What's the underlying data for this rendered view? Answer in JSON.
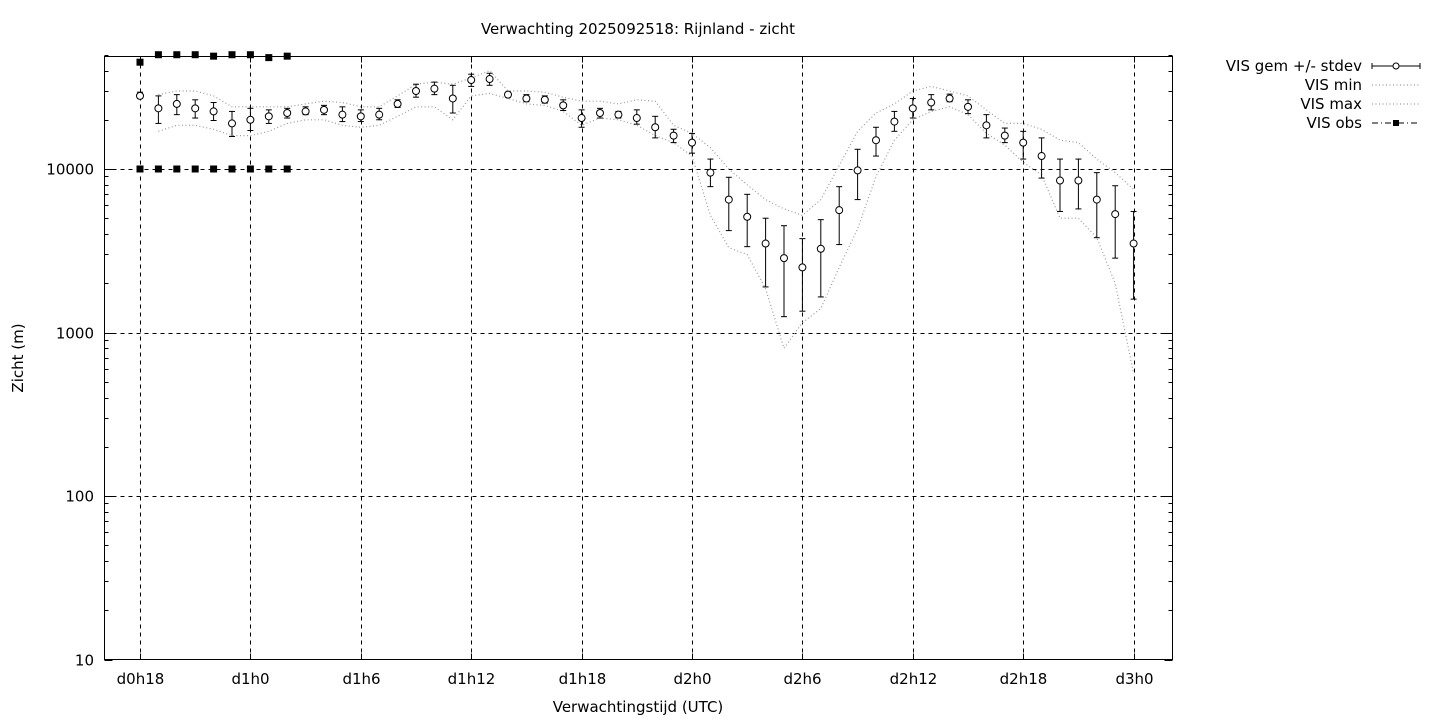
{
  "chart_data": {
    "type": "line",
    "title": "Verwachting 2025092518: Rijnland - zicht",
    "xlabel": "Verwachtingstijd (UTC)",
    "ylabel": "Zicht (m)",
    "y_scale": "log",
    "ylim": [
      10,
      50000
    ],
    "xlim": [
      "d0h18",
      "d3h0"
    ],
    "grid": true,
    "legend_position": "outside-right",
    "x_ticks": [
      "d0h18",
      "d1h0",
      "d1h6",
      "d1h12",
      "d1h18",
      "d2h0",
      "d2h6",
      "d2h12",
      "d2h18",
      "d3h0"
    ],
    "y_ticks": [
      10,
      100,
      1000,
      10000
    ],
    "lead_hours_per_step": 1,
    "x": [
      18,
      19,
      20,
      21,
      22,
      23,
      24,
      25,
      26,
      27,
      28,
      29,
      30,
      31,
      32,
      33,
      34,
      35,
      36,
      37,
      38,
      39,
      40,
      41,
      42,
      43,
      44,
      45,
      46,
      47,
      48,
      49,
      50,
      51,
      52,
      53,
      54,
      55,
      56,
      57,
      58,
      59,
      60,
      61,
      62,
      63,
      64,
      65,
      66,
      67,
      68,
      69,
      70,
      71,
      72
    ],
    "series": [
      {
        "name": "VIS gem +/- stdev",
        "style": "points-errorbars",
        "values": [
          28000,
          23500,
          25000,
          23500,
          22500,
          19000,
          20000,
          21000,
          22000,
          22500,
          23000,
          21500,
          21000,
          21500,
          25000,
          30000,
          31000,
          27000,
          35000,
          35500,
          28500,
          27000,
          26500,
          24500,
          20500,
          22000,
          21500,
          20500,
          18000,
          16000,
          14500,
          9500,
          6500,
          5100,
          3500,
          2850,
          2500,
          3250,
          5600,
          9800,
          15000,
          19500,
          23500,
          25500,
          27000,
          24000,
          18500,
          16000,
          14500,
          12000,
          8500,
          8500,
          6500,
          5300,
          3500
        ],
        "stdev_low": [
          27000,
          19000,
          21500,
          20500,
          19800,
          15800,
          17200,
          19000,
          20500,
          21500,
          21500,
          19500,
          19500,
          20000,
          23800,
          27500,
          28500,
          22000,
          32000,
          32500,
          27500,
          25800,
          25300,
          22800,
          18000,
          20500,
          20500,
          18800,
          15500,
          14500,
          12500,
          7800,
          4200,
          3350,
          1900,
          1250,
          1350,
          1650,
          3450,
          6500,
          12000,
          17000,
          20500,
          23000,
          25800,
          21800,
          15500,
          14500,
          11500,
          8800,
          5500,
          5700,
          3800,
          2850,
          1600
        ],
        "stdev_high": [
          29500,
          28000,
          28500,
          26500,
          25500,
          22500,
          23500,
          23000,
          23500,
          24000,
          24500,
          24000,
          23000,
          23500,
          26500,
          33000,
          34000,
          32500,
          38000,
          38500,
          29500,
          28500,
          28000,
          26500,
          23000,
          23500,
          22500,
          23000,
          21000,
          17500,
          16500,
          11500,
          8900,
          7000,
          5000,
          4500,
          3750,
          4900,
          7800,
          13200,
          18000,
          22500,
          27000,
          28500,
          28700,
          26500,
          21500,
          17800,
          17000,
          15500,
          11500,
          11500,
          9500,
          7900,
          5500
        ]
      },
      {
        "name": "VIS min",
        "style": "dotted",
        "values": [
          null,
          17000,
          18500,
          18500,
          17500,
          16000,
          16000,
          17000,
          19000,
          20000,
          20000,
          18500,
          18000,
          18500,
          21000,
          24000,
          24000,
          20000,
          28000,
          29000,
          27000,
          25000,
          24500,
          22500,
          18500,
          20500,
          20000,
          18500,
          16000,
          14500,
          12000,
          5200,
          3300,
          3000,
          1850,
          800,
          1150,
          1400,
          2500,
          4300,
          9000,
          15000,
          20000,
          22500,
          24000,
          21500,
          16500,
          14000,
          11000,
          9200,
          5000,
          5000,
          3800,
          2000,
          560
        ]
      },
      {
        "name": "VIS max",
        "style": "dotted",
        "values": [
          null,
          28500,
          30000,
          30000,
          28000,
          24000,
          24000,
          24000,
          24000,
          25000,
          26000,
          25500,
          24000,
          24000,
          28000,
          33000,
          34000,
          33000,
          36000,
          40000,
          30000,
          30000,
          29500,
          27500,
          26000,
          26000,
          25000,
          26500,
          26000,
          18500,
          16500,
          13500,
          10000,
          8000,
          6500,
          5700,
          5200,
          6500,
          10500,
          17000,
          22000,
          25000,
          30000,
          32000,
          30000,
          28000,
          23000,
          19000,
          19000,
          17500,
          15000,
          14500,
          11500,
          9500,
          7500
        ]
      },
      {
        "name": "VIS obs",
        "style": "dash-dot-squares",
        "x": [
          18,
          19,
          20,
          21,
          22,
          23,
          24,
          25,
          26,
          18,
          19,
          20,
          21,
          22,
          23,
          24,
          25,
          26
        ],
        "values": [
          45000,
          50000,
          50000,
          50000,
          49000,
          50000,
          50000,
          48000,
          49000,
          10000,
          10000,
          10000,
          10000,
          10000,
          10000,
          10000,
          10000,
          10000
        ]
      }
    ]
  }
}
